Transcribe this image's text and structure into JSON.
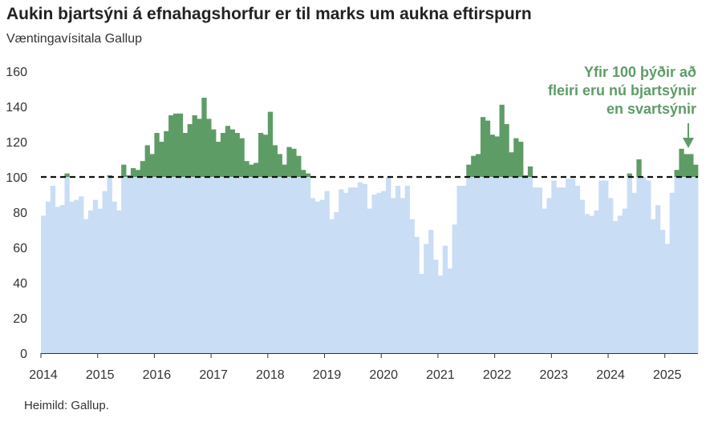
{
  "header": {
    "title": "Aukin bjartsýni á efnahagshorfur er til marks um aukna eftirspurn",
    "subtitle": "Væntingavísitala Gallup"
  },
  "footer": {
    "source": "Heimild: Gallup."
  },
  "colors": {
    "below": "#c9ddf5",
    "above": "#5e9c66",
    "reference_line": "#111111",
    "axis": "#333333"
  },
  "chart_data": {
    "type": "area",
    "x_start": "2014-01",
    "x_frequency": "monthly",
    "xticks": [
      "2014",
      "2015",
      "2016",
      "2017",
      "2018",
      "2019",
      "2020",
      "2021",
      "2022",
      "2023",
      "2024",
      "2025"
    ],
    "yticks": [
      0,
      20,
      40,
      60,
      80,
      100,
      120,
      140,
      160
    ],
    "ylim": [
      0,
      160
    ],
    "reference_line": 100,
    "values": [
      78,
      86,
      95,
      83,
      84,
      102,
      86,
      87,
      89,
      76,
      81,
      87,
      82,
      92,
      101,
      86,
      81,
      107,
      101,
      105,
      104,
      109,
      118,
      113,
      125,
      120,
      126,
      135,
      136,
      136,
      125,
      130,
      135,
      133,
      145,
      133,
      127,
      120,
      125,
      129,
      127,
      125,
      122,
      109,
      107,
      108,
      125,
      124,
      137,
      118,
      113,
      107,
      117,
      116,
      112,
      104,
      102,
      88,
      86,
      87,
      92,
      76,
      80,
      93,
      91,
      94,
      94,
      97,
      96,
      82,
      90,
      91,
      92,
      100,
      88,
      95,
      88,
      95,
      76,
      66,
      45,
      62,
      70,
      53,
      44,
      61,
      48,
      73,
      95,
      95,
      107,
      112,
      113,
      134,
      132,
      124,
      123,
      141,
      130,
      114,
      122,
      120,
      101,
      106,
      94,
      94,
      82,
      88,
      98,
      94,
      94,
      99,
      99,
      95,
      87,
      79,
      78,
      81,
      98,
      98,
      88,
      75,
      78,
      82,
      102,
      91,
      110,
      100,
      98,
      76,
      84,
      70,
      62,
      91,
      104,
      116,
      113,
      113,
      107
    ],
    "annotation": "Yfir 100 þýðir að fleiri eru nú bjartsýnir en svartsýnir",
    "annotation_lines": [
      "Yfir 100 þýðir að",
      "fleiri eru nú bjartsýnir",
      "en svartsýnir"
    ]
  }
}
